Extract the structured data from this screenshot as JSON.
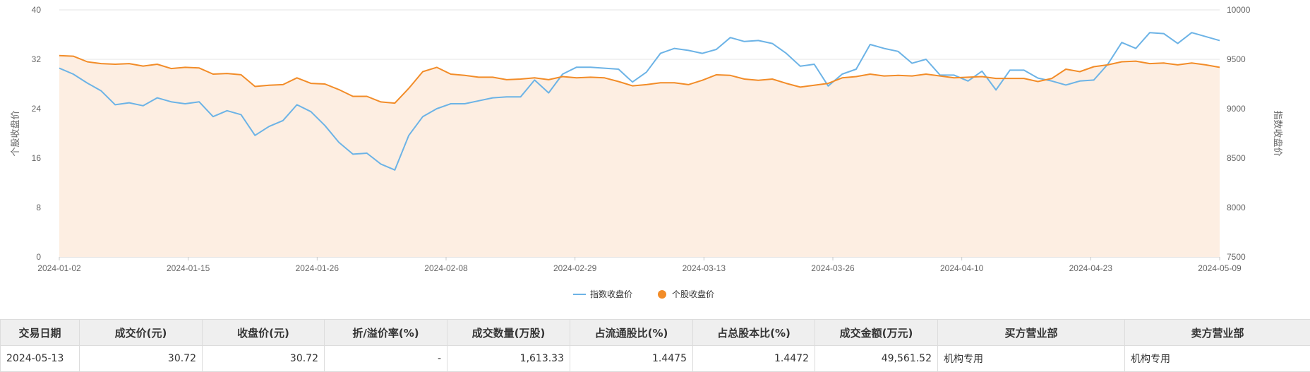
{
  "chart_data": {
    "type": "line",
    "x_ticks": [
      "2024-01-02",
      "2024-01-15",
      "2024-01-26",
      "2024-02-08",
      "2024-02-29",
      "2024-03-13",
      "2024-03-26",
      "2024-04-10",
      "2024-04-23",
      "2024-05-09"
    ],
    "left_axis": {
      "title": "个股收盘价",
      "ticks": [
        "0",
        "8",
        "16",
        "24",
        "32",
        "40"
      ],
      "range": [
        0,
        40
      ]
    },
    "right_axis": {
      "title": "指数收盘价",
      "ticks": [
        "7500",
        "8000",
        "8500",
        "9000",
        "9500",
        "10000"
      ],
      "range": [
        7500,
        10000
      ]
    },
    "series": [
      {
        "name": "指数收盘价",
        "axis": "right",
        "color": "#6cb3e6",
        "values": [
          9410,
          9350,
          9260,
          9180,
          9040,
          9060,
          9030,
          9110,
          9070,
          9050,
          9070,
          8920,
          8980,
          8940,
          8730,
          8820,
          8880,
          9040,
          8970,
          8830,
          8660,
          8540,
          8550,
          8440,
          8380,
          8730,
          8920,
          9000,
          9050,
          9050,
          9080,
          9110,
          9120,
          9120,
          9290,
          9160,
          9350,
          9420,
          9420,
          9410,
          9400,
          9270,
          9370,
          9560,
          9610,
          9590,
          9560,
          9600,
          9720,
          9680,
          9690,
          9660,
          9560,
          9430,
          9450,
          9230,
          9350,
          9400,
          9650,
          9610,
          9580,
          9460,
          9500,
          9340,
          9340,
          9280,
          9380,
          9190,
          9390,
          9390,
          9310,
          9280,
          9240,
          9280,
          9290,
          9450,
          9670,
          9610,
          9770,
          9760,
          9660,
          9770,
          9730,
          9690
        ]
      },
      {
        "name": "个股收盘价",
        "axis": "left",
        "color": "#f28c28",
        "values": [
          32.6,
          32.5,
          31.6,
          31.3,
          31.2,
          31.3,
          30.9,
          31.2,
          30.5,
          30.7,
          30.6,
          29.6,
          29.7,
          29.5,
          27.6,
          27.8,
          27.9,
          29.0,
          28.1,
          28.0,
          27.1,
          26.0,
          26.0,
          25.1,
          24.9,
          27.3,
          30.0,
          30.7,
          29.6,
          29.4,
          29.1,
          29.1,
          28.7,
          28.8,
          29.0,
          28.7,
          29.2,
          29.0,
          29.1,
          29.0,
          28.4,
          27.7,
          27.9,
          28.2,
          28.2,
          27.9,
          28.6,
          29.5,
          29.4,
          28.8,
          28.6,
          28.8,
          28.1,
          27.5,
          27.8,
          28.1,
          29.0,
          29.2,
          29.6,
          29.3,
          29.4,
          29.3,
          29.6,
          29.3,
          29.0,
          29.1,
          29.2,
          28.9,
          28.9,
          28.9,
          28.4,
          28.9,
          30.4,
          30.0,
          30.8,
          31.1,
          31.6,
          31.7,
          31.3,
          31.4,
          31.1,
          31.4,
          31.1,
          30.7
        ]
      }
    ],
    "legend": [
      "指数收盘价",
      "个股收盘价"
    ],
    "legend_position": "bottom-center",
    "area_fill": {
      "series": "个股收盘价",
      "color": "#fdeee2"
    },
    "grid": true
  },
  "table": {
    "headers": [
      "交易日期",
      "成交价(元)",
      "收盘价(元)",
      "折/溢价率(%)",
      "成交数量(万股)",
      "占流通股比(%)",
      "占总股本比(%)",
      "成交金额(万元)",
      "买方营业部",
      "卖方营业部"
    ],
    "rows": [
      [
        "2024-05-13",
        "30.72",
        "30.72",
        "-",
        "1,613.33",
        "1.4475",
        "1.4472",
        "49,561.52",
        "机构专用",
        "机构专用"
      ]
    ]
  }
}
